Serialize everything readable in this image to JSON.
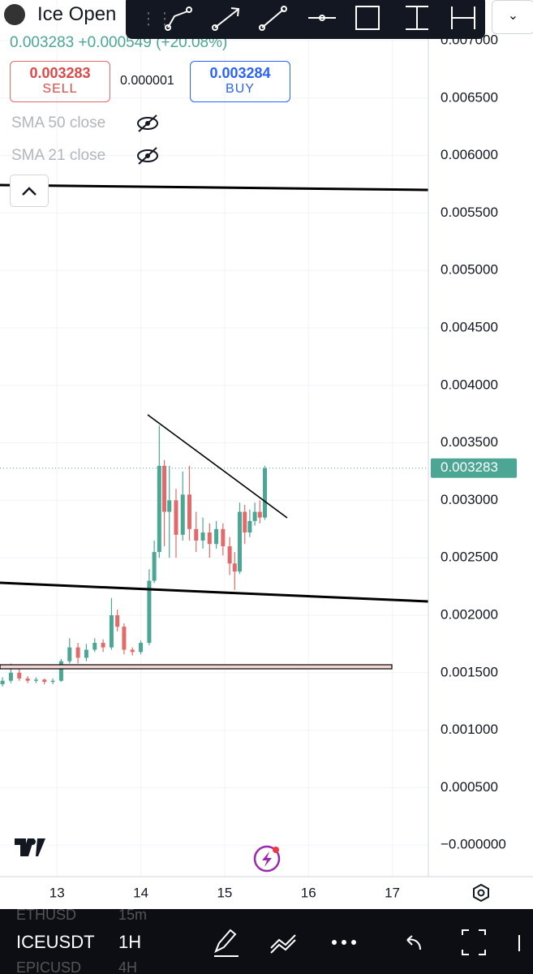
{
  "header": {
    "symbol": "Ice Open",
    "price_line": "0.003283 +0.000549 (+20.08%)",
    "sell_price": "0.003283",
    "sell_label": "SELL",
    "spread": "0.000001",
    "buy_price": "0.003284",
    "buy_label": "BUY",
    "indicators": [
      "SMA 50 close",
      "SMA 21 close"
    ],
    "last_price": "0.003283"
  },
  "bottom_bar": {
    "rows": [
      [
        "ETHUSD",
        "15m"
      ],
      [
        "ICEUSDT",
        "1H"
      ],
      [
        "EPICUSD",
        "4H"
      ]
    ]
  },
  "chart_data": {
    "type": "candlestick",
    "up_color": "#4ba794",
    "down_color": "#e36a6a",
    "x": [
      12.35,
      12.45,
      12.55,
      12.65,
      12.75,
      12.85,
      12.95,
      13.05,
      13.15,
      13.25,
      13.35,
      13.45,
      13.55,
      13.65,
      13.72,
      13.8,
      13.9,
      14.0,
      14.1,
      14.16,
      14.22,
      14.28,
      14.34,
      14.42,
      14.5,
      14.58,
      14.66,
      14.74,
      14.82,
      14.9,
      14.98,
      15.06,
      15.12,
      15.18,
      15.24,
      15.3,
      15.36,
      15.42,
      15.48
    ],
    "open": [
      0.0014,
      0.00143,
      0.0015,
      0.00145,
      0.00143,
      0.00144,
      0.00142,
      0.00143,
      0.0016,
      0.00172,
      0.00163,
      0.0017,
      0.00176,
      0.00172,
      0.002,
      0.0019,
      0.0017,
      0.00168,
      0.00176,
      0.0023,
      0.00255,
      0.0033,
      0.0029,
      0.003,
      0.0027,
      0.00305,
      0.00275,
      0.00265,
      0.00272,
      0.00262,
      0.00275,
      0.0026,
      0.00245,
      0.00238,
      0.0029,
      0.00272,
      0.00282,
      0.0029,
      0.00285
    ],
    "high": [
      0.00146,
      0.00158,
      0.00153,
      0.00147,
      0.00146,
      0.00145,
      0.00145,
      0.00162,
      0.0018,
      0.00176,
      0.00175,
      0.0018,
      0.00179,
      0.00215,
      0.00205,
      0.00193,
      0.00172,
      0.00178,
      0.0024,
      0.00265,
      0.00365,
      0.00335,
      0.0033,
      0.0031,
      0.00325,
      0.0033,
      0.0029,
      0.00285,
      0.0028,
      0.00282,
      0.0028,
      0.00268,
      0.00255,
      0.00298,
      0.00296,
      0.00292,
      0.00298,
      0.003,
      0.0033
    ],
    "low": [
      0.00138,
      0.00141,
      0.00143,
      0.00141,
      0.00141,
      0.0014,
      0.0014,
      0.00142,
      0.00158,
      0.00158,
      0.0016,
      0.00168,
      0.00168,
      0.0017,
      0.00186,
      0.00166,
      0.00165,
      0.00166,
      0.00174,
      0.00228,
      0.0025,
      0.0026,
      0.0025,
      0.0025,
      0.00265,
      0.00265,
      0.00255,
      0.00258,
      0.0025,
      0.00258,
      0.00252,
      0.00235,
      0.00222,
      0.00236,
      0.00262,
      0.00268,
      0.00278,
      0.0028,
      0.00283
    ],
    "close": [
      0.00143,
      0.0015,
      0.00145,
      0.00143,
      0.00144,
      0.00142,
      0.00143,
      0.0016,
      0.00172,
      0.00163,
      0.0017,
      0.00176,
      0.00172,
      0.002,
      0.0019,
      0.0017,
      0.00168,
      0.00176,
      0.0023,
      0.00255,
      0.0033,
      0.0029,
      0.003,
      0.0027,
      0.00305,
      0.00275,
      0.00265,
      0.00272,
      0.00262,
      0.00275,
      0.0026,
      0.00245,
      0.00238,
      0.0029,
      0.00272,
      0.00282,
      0.0029,
      0.00285,
      0.00328
    ],
    "xlim": [
      12.32,
      17.43
    ],
    "xticks": [
      13,
      14,
      15,
      16,
      17
    ],
    "ylim": [
      -0.000274,
      0.007353
    ],
    "yticks": [
      {
        "value": 0.007,
        "label": "0.007000"
      },
      {
        "value": 0.0065,
        "label": "0.006500"
      },
      {
        "value": 0.006,
        "label": "0.006000"
      },
      {
        "value": 0.0055,
        "label": "0.005500"
      },
      {
        "value": 0.005,
        "label": "0.005000"
      },
      {
        "value": 0.0045,
        "label": "0.004500"
      },
      {
        "value": 0.004,
        "label": "0.004000"
      },
      {
        "value": 0.0035,
        "label": "0.003500"
      },
      {
        "value": 0.003,
        "label": "0.003000"
      },
      {
        "value": 0.0025,
        "label": "0.002500"
      },
      {
        "value": 0.002,
        "label": "0.002000"
      },
      {
        "value": 0.0015,
        "label": "0.001500"
      },
      {
        "value": 0.001,
        "label": "0.001000"
      },
      {
        "value": 0.0005,
        "label": "0.000500"
      },
      {
        "value": 0,
        "label": "−0.000000"
      }
    ],
    "grid": true
  }
}
